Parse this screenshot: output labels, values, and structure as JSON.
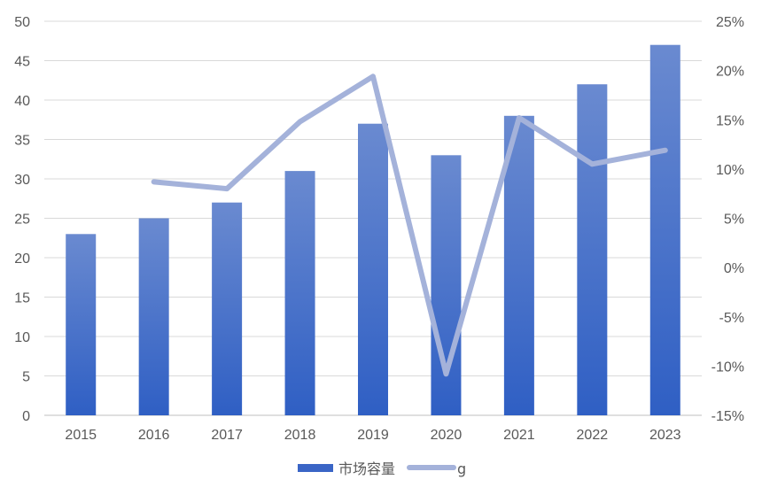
{
  "chart_data": {
    "type": "bar",
    "categories": [
      "2015",
      "2016",
      "2017",
      "2018",
      "2019",
      "2020",
      "2021",
      "2022",
      "2023"
    ],
    "series": [
      {
        "name": "市场容量",
        "type": "bar",
        "axis": "left",
        "values": [
          23,
          25,
          27,
          31,
          37,
          33,
          38,
          42,
          47
        ]
      },
      {
        "name": "g",
        "type": "line",
        "axis": "right",
        "values": [
          null,
          0.087,
          0.08,
          0.148,
          0.194,
          -0.108,
          0.152,
          0.105,
          0.119
        ]
      }
    ],
    "y_left": {
      "min": 0,
      "max": 50,
      "ticks": [
        "0",
        "5",
        "10",
        "15",
        "20",
        "25",
        "30",
        "35",
        "40",
        "45",
        "50"
      ]
    },
    "y_right": {
      "min": -0.15,
      "max": 0.25,
      "ticks": [
        "-15%",
        "-10%",
        "-5%",
        "0%",
        "5%",
        "10%",
        "15%",
        "20%",
        "25%"
      ]
    },
    "grid": true,
    "legend_position": "bottom",
    "colors": {
      "bar_top": "#6a8ad0",
      "bar_bottom": "#2f5fc4",
      "line": "#a4b2da",
      "grid": "#d9d9d9",
      "text": "#595959"
    }
  }
}
